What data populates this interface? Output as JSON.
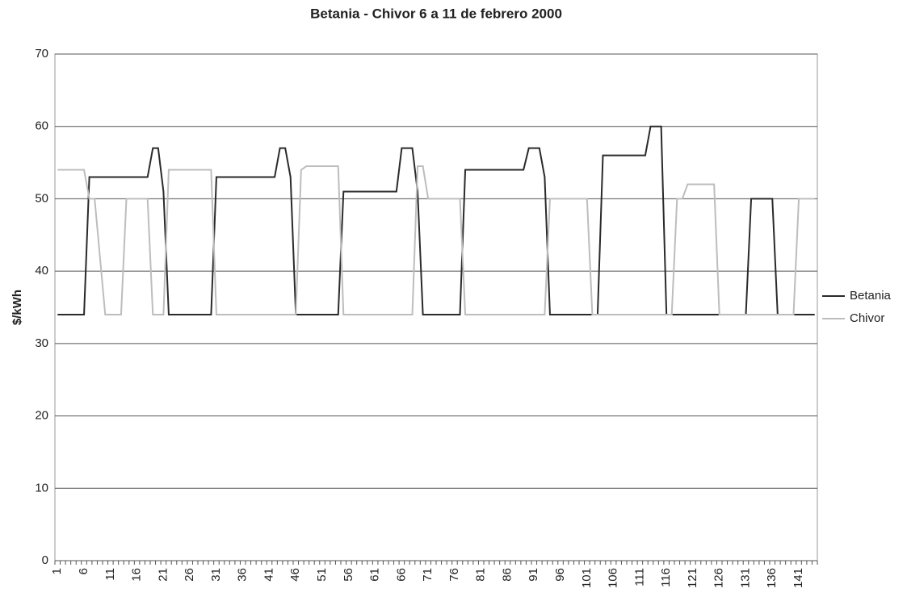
{
  "chart_data": {
    "type": "line",
    "title": "Betania - Chivor 6 a 11 de febrero 2000",
    "y_label": "$/kWh",
    "categories": [
      1,
      null,
      null,
      null,
      null,
      6,
      null,
      null,
      null,
      null,
      11,
      null,
      null,
      null,
      null,
      16,
      null,
      null,
      null,
      null,
      21,
      null,
      null,
      null,
      null,
      26,
      null,
      null,
      null,
      null,
      31,
      null,
      null,
      null,
      null,
      36,
      null,
      null,
      null,
      null,
      41,
      null,
      null,
      null,
      null,
      46,
      null,
      null,
      null,
      null,
      51,
      null,
      null,
      null,
      null,
      56,
      null,
      null,
      null,
      null,
      61,
      null,
      null,
      null,
      null,
      66,
      null,
      null,
      null,
      null,
      71,
      null,
      null,
      null,
      null,
      76,
      null,
      null,
      null,
      null,
      81,
      null,
      null,
      null,
      null,
      86,
      null,
      null,
      null,
      null,
      91,
      null,
      null,
      null,
      null,
      96,
      null,
      null,
      null,
      null,
      101,
      null,
      null,
      null,
      null,
      106,
      null,
      null,
      null,
      null,
      111,
      null,
      null,
      null,
      null,
      116,
      null,
      null,
      null,
      null,
      121,
      null,
      null,
      null,
      null,
      126,
      null,
      null,
      null,
      null,
      131,
      null,
      null,
      null,
      null,
      136,
      null,
      null,
      null,
      null,
      141,
      null,
      null,
      null
    ],
    "series": [
      {
        "name": "Betania",
        "color": "#2a2a2a",
        "values": [
          34,
          34,
          34,
          34,
          34,
          34,
          53,
          53,
          53,
          53,
          53,
          53,
          53,
          53,
          53,
          53,
          53,
          53,
          57,
          57,
          51,
          34,
          34,
          34,
          34,
          34,
          34,
          34,
          34,
          34,
          53,
          53,
          53,
          53,
          53,
          53,
          53,
          53,
          53,
          53,
          53,
          53,
          57,
          57,
          53,
          34,
          34,
          34,
          34,
          34,
          34,
          34,
          34,
          34,
          51,
          51,
          51,
          51,
          51,
          51,
          51,
          51,
          51,
          51,
          51,
          57,
          57,
          57,
          51,
          34,
          34,
          34,
          34,
          34,
          34,
          34,
          34,
          54,
          54,
          54,
          54,
          54,
          54,
          54,
          54,
          54,
          54,
          54,
          54,
          57,
          57,
          57,
          53,
          34,
          34,
          34,
          34,
          34,
          34,
          34,
          34,
          34,
          34,
          56,
          56,
          56,
          56,
          56,
          56,
          56,
          56,
          56,
          60,
          60,
          60,
          34,
          34,
          34,
          34,
          34,
          34,
          34,
          34,
          34,
          34,
          34,
          34,
          34,
          34,
          34,
          34,
          50,
          50,
          50,
          50,
          50,
          34,
          34,
          34,
          34,
          34,
          34,
          34,
          34
        ]
      },
      {
        "name": "Chivor",
        "color": "#bdbdbd",
        "values": [
          54,
          54,
          54,
          54,
          54,
          54,
          50,
          50,
          42,
          34,
          34,
          34,
          34,
          50,
          50,
          50,
          50,
          50,
          34,
          34,
          34,
          54,
          54,
          54,
          54,
          54,
          54,
          54,
          54,
          54,
          34,
          34,
          34,
          34,
          34,
          34,
          34,
          34,
          34,
          34,
          34,
          34,
          34,
          34,
          34,
          34,
          54,
          54.5,
          54.5,
          54.5,
          54.5,
          54.5,
          54.5,
          54.5,
          34,
          34,
          34,
          34,
          34,
          34,
          34,
          34,
          34,
          34,
          34,
          34,
          34,
          34,
          54.5,
          54.5,
          50,
          50,
          50,
          50,
          50,
          50,
          50,
          34,
          34,
          34,
          34,
          34,
          34,
          34,
          34,
          34,
          34,
          34,
          34,
          34,
          34,
          34,
          34,
          50,
          50,
          50,
          50,
          50,
          50,
          50,
          50,
          34,
          34,
          34,
          34,
          34,
          34,
          34,
          34,
          34,
          34,
          34,
          34,
          34,
          34,
          34,
          34,
          50,
          50,
          52,
          52,
          52,
          52,
          52,
          52,
          34,
          34,
          34,
          34,
          34,
          34,
          34,
          34,
          34,
          34,
          34,
          34,
          34,
          34,
          34,
          50,
          50,
          50,
          50
        ]
      }
    ],
    "ylim": [
      0,
      70
    ],
    "yticks": [
      0,
      10,
      20,
      30,
      40,
      50,
      60,
      70
    ],
    "grid": true,
    "legend": "right"
  }
}
